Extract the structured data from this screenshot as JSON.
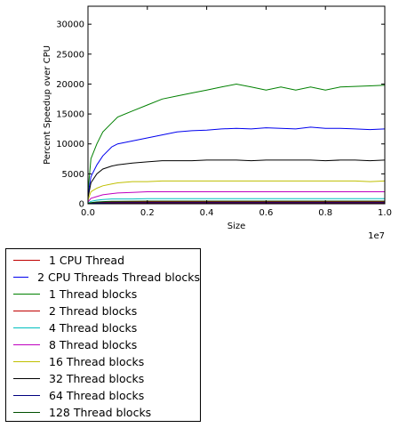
{
  "chart_data": {
    "type": "line",
    "title": "",
    "xlabel": "Size",
    "ylabel": "Percent Speedup over CPU",
    "x_offset_label": "1e7",
    "xlim": [
      0,
      10000000
    ],
    "ylim": [
      0,
      33000
    ],
    "x_ticks": [
      0,
      2000000,
      4000000,
      6000000,
      8000000,
      10000000
    ],
    "x_tick_labels": [
      "0.0",
      "0.2",
      "0.4",
      "0.6",
      "0.8",
      "1.0"
    ],
    "y_ticks": [
      0,
      5000,
      10000,
      15000,
      20000,
      25000,
      30000
    ],
    "y_tick_labels": [
      "0",
      "5000",
      "10000",
      "15000",
      "20000",
      "25000",
      "30000"
    ],
    "grid": false,
    "legend_position": "below-left",
    "x": [
      0,
      100000,
      300000,
      500000,
      800000,
      1000000,
      1500000,
      2000000,
      2500000,
      3000000,
      3500000,
      4000000,
      4500000,
      5000000,
      5500000,
      6000000,
      6500000,
      7000000,
      7500000,
      8000000,
      8500000,
      9000000,
      9500000,
      10000000
    ],
    "series": [
      {
        "name": "1 CPU Thread",
        "color": "#c00000",
        "values": [
          100,
          100,
          100,
          100,
          100,
          100,
          100,
          100,
          100,
          100,
          100,
          100,
          100,
          100,
          100,
          100,
          100,
          100,
          100,
          100,
          100,
          100,
          100,
          100
        ]
      },
      {
        "name": "2 CPU Threads Thread blocks",
        "color": "#0000ee",
        "values": [
          1500,
          4500,
          6500,
          8000,
          9500,
          10000,
          10500,
          11000,
          11500,
          12000,
          12200,
          12300,
          12500,
          12600,
          12500,
          12700,
          12600,
          12500,
          12800,
          12600,
          12600,
          12500,
          12400,
          12500
        ]
      },
      {
        "name": "1 Thread blocks",
        "color": "#008000",
        "values": [
          2000,
          7500,
          10000,
          12000,
          13500,
          14500,
          15500,
          16500,
          17500,
          18000,
          18500,
          19000,
          19500,
          20000,
          19500,
          19000,
          19500,
          19000,
          19500,
          19000,
          19500,
          19600,
          19700,
          19800
        ]
      },
      {
        "name": "2 Thread blocks",
        "color": "#c00000",
        "values": [
          50,
          150,
          200,
          250,
          300,
          300,
          300,
          300,
          300,
          300,
          300,
          300,
          300,
          300,
          300,
          300,
          300,
          300,
          300,
          300,
          300,
          300,
          300,
          300
        ]
      },
      {
        "name": "4 Thread blocks",
        "color": "#00bfbf",
        "values": [
          100,
          400,
          600,
          700,
          800,
          800,
          800,
          850,
          850,
          850,
          850,
          850,
          850,
          850,
          850,
          850,
          850,
          850,
          850,
          850,
          850,
          850,
          850,
          850
        ]
      },
      {
        "name": "8 Thread blocks",
        "color": "#bf00bf",
        "values": [
          300,
          900,
          1200,
          1500,
          1700,
          1800,
          1900,
          2000,
          2000,
          2000,
          2000,
          2000,
          2000,
          2000,
          2000,
          2000,
          2000,
          2000,
          2000,
          2000,
          2000,
          2000,
          2000,
          2000
        ]
      },
      {
        "name": "16 Thread blocks",
        "color": "#bfbf00",
        "values": [
          600,
          2000,
          2600,
          3000,
          3300,
          3500,
          3700,
          3700,
          3800,
          3800,
          3800,
          3800,
          3800,
          3800,
          3800,
          3800,
          3800,
          3800,
          3800,
          3800,
          3800,
          3800,
          3700,
          3800
        ]
      },
      {
        "name": "32 Thread blocks",
        "color": "#000000",
        "values": [
          1000,
          3500,
          5000,
          5800,
          6300,
          6500,
          6800,
          7000,
          7200,
          7200,
          7200,
          7300,
          7300,
          7300,
          7200,
          7300,
          7300,
          7300,
          7300,
          7200,
          7300,
          7300,
          7200,
          7300
        ]
      },
      {
        "name": "64 Thread blocks",
        "color": "#000080",
        "values": [
          40,
          100,
          130,
          150,
          170,
          180,
          180,
          190,
          190,
          190,
          190,
          190,
          190,
          190,
          190,
          190,
          190,
          190,
          190,
          190,
          190,
          190,
          190,
          190
        ]
      },
      {
        "name": "128 Thread blocks",
        "color": "#005000",
        "values": [
          60,
          200,
          300,
          350,
          400,
          420,
          430,
          440,
          450,
          450,
          450,
          450,
          450,
          450,
          450,
          450,
          450,
          450,
          450,
          450,
          450,
          450,
          450,
          450
        ]
      }
    ]
  }
}
